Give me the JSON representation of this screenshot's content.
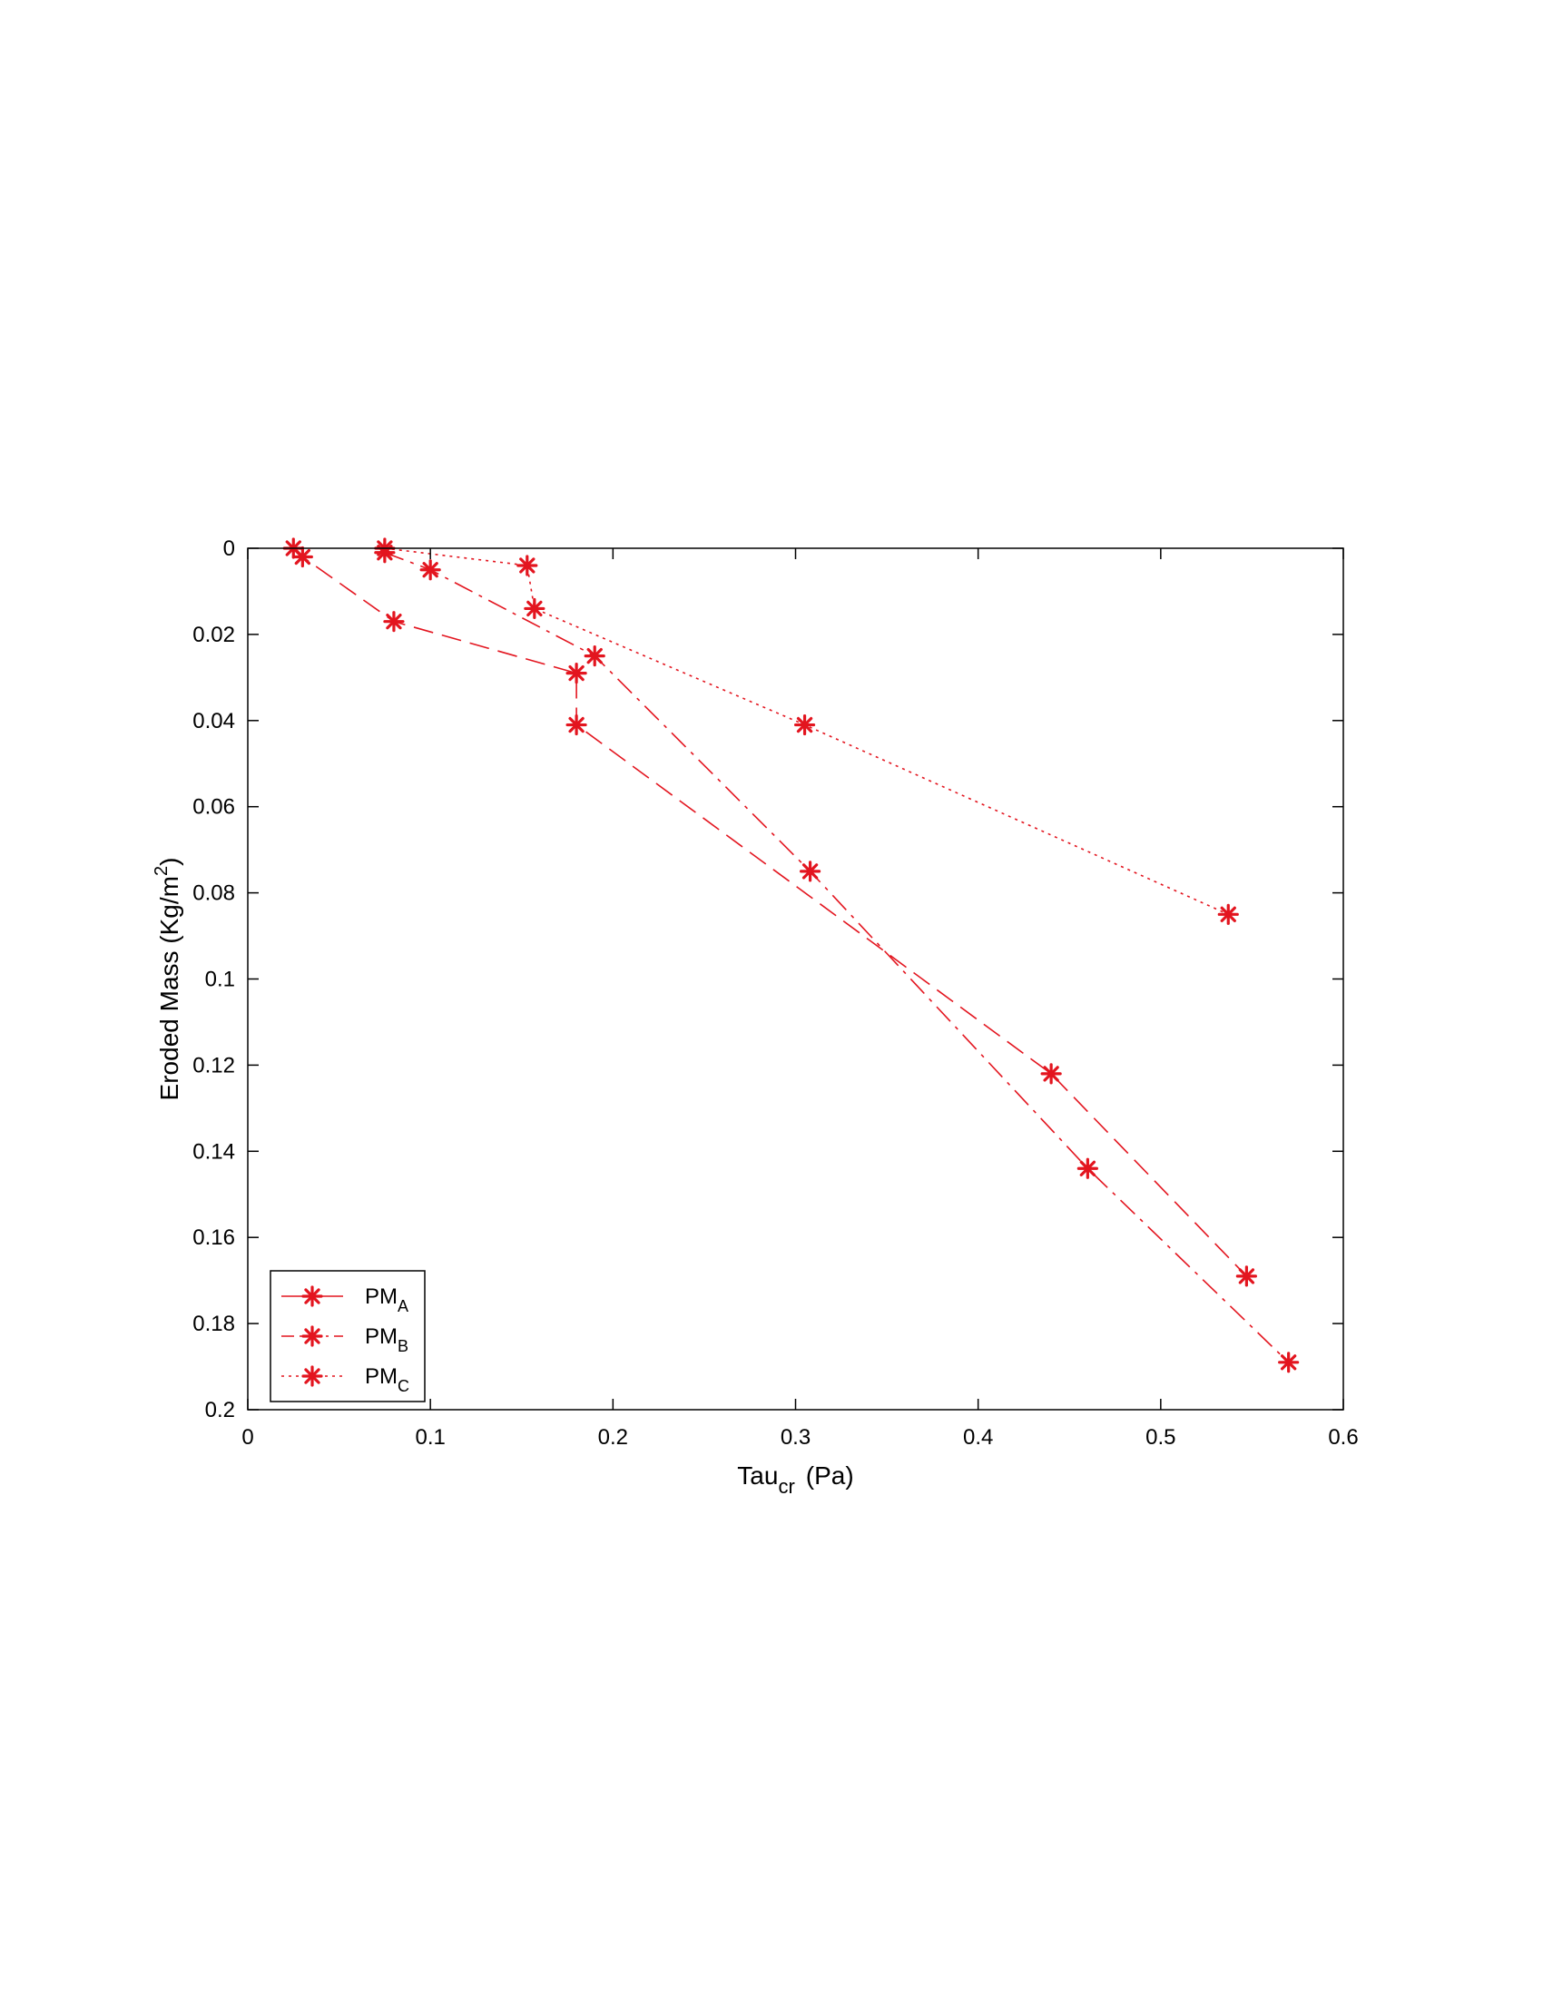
{
  "chart_data": {
    "type": "line",
    "title": "",
    "xlabel": {
      "main": "Tau",
      "sub": "cr",
      "unit": "(Pa)"
    },
    "ylabel": {
      "main": "Eroded Mass  (Kg/m",
      "sup": "2",
      "end": ")"
    },
    "xlim": [
      0,
      0.6
    ],
    "ylim": [
      0,
      0.2
    ],
    "y_reversed": true,
    "xticks": [
      "0",
      "0.1",
      "0.2",
      "0.3",
      "0.4",
      "0.5",
      "0.6"
    ],
    "yticks": [
      "0",
      "0.02",
      "0.04",
      "0.06",
      "0.08",
      "0.1",
      "0.12",
      "0.14",
      "0.16",
      "0.18",
      "0.2"
    ],
    "grid": false,
    "legend_position": "bottom-left",
    "series": [
      {
        "name": "PM",
        "name_sub": "A",
        "line_style": "dash",
        "x": [
          0.025,
          0.03,
          0.08,
          0.18,
          0.18,
          0.44,
          0.547
        ],
        "y": [
          0.0,
          0.002,
          0.017,
          0.029,
          0.041,
          0.122,
          0.169
        ]
      },
      {
        "name": "PM",
        "name_sub": "B",
        "line_style": "dashdot",
        "x": [
          0.075,
          0.1,
          0.19,
          0.308,
          0.46,
          0.57
        ],
        "y": [
          0.001,
          0.005,
          0.025,
          0.075,
          0.144,
          0.189
        ]
      },
      {
        "name": "PM",
        "name_sub": "C",
        "line_style": "dot",
        "x": [
          0.075,
          0.153,
          0.157,
          0.305,
          0.537
        ],
        "y": [
          0.0,
          0.004,
          0.014,
          0.041,
          0.085
        ]
      }
    ],
    "colors": {
      "series": "#e3151f",
      "axis": "#000000"
    }
  }
}
